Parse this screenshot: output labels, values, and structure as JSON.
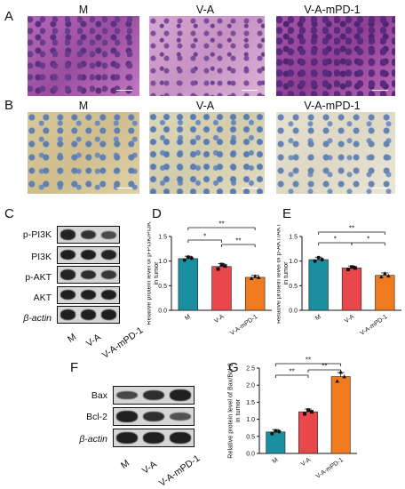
{
  "panels": {
    "A": {
      "letter": "A",
      "titles": [
        "M",
        "V-A",
        "V-A-mPD-1"
      ]
    },
    "B": {
      "letter": "B",
      "titles": [
        "M",
        "V-A",
        "V-A-mPD-1"
      ]
    },
    "C": {
      "letter": "C",
      "proteins": [
        "p-PI3K",
        "PI3K",
        "p-AKT",
        "AKT",
        "β-actin"
      ],
      "lanes": [
        "M",
        "V-A",
        "V-A-mPD-1"
      ]
    },
    "D": {
      "letter": "D"
    },
    "E": {
      "letter": "E"
    },
    "F": {
      "letter": "F",
      "proteins": [
        "Bax",
        "Bcl-2",
        "β-actin"
      ],
      "lanes": [
        "M",
        "V-A",
        "V-A-mPD-1"
      ]
    },
    "G": {
      "letter": "G"
    }
  },
  "colors": {
    "M": "#1a8fa0",
    "V-A": "#e8474c",
    "V-A-mPD-1": "#f07b1f"
  },
  "chart_data": [
    {
      "type": "bar",
      "panel": "D",
      "categories": [
        "M",
        "V-A",
        "V-A-mPD-1"
      ],
      "values": [
        1.05,
        0.89,
        0.67
      ],
      "errors": [
        0.05,
        0.06,
        0.04
      ],
      "points": [
        [
          1.02,
          1.08,
          1.06
        ],
        [
          0.84,
          0.93,
          0.9
        ],
        [
          0.65,
          0.69,
          0.67
        ]
      ],
      "ylabel": "Relative protein level of p-PI3K/PI3K in tumor",
      "ylim": [
        0,
        1.5
      ],
      "yticks": [
        "0.0",
        "0.5",
        "1.0",
        "1.5"
      ],
      "significance": [
        {
          "from": 0,
          "to": 1,
          "label": "*"
        },
        {
          "from": 0,
          "to": 2,
          "label": "**"
        },
        {
          "from": 1,
          "to": 2,
          "label": "**"
        }
      ]
    },
    {
      "type": "bar",
      "panel": "E",
      "categories": [
        "M",
        "V-A",
        "V-A-mPD-1"
      ],
      "values": [
        1.03,
        0.86,
        0.71
      ],
      "errors": [
        0.05,
        0.04,
        0.05
      ],
      "points": [
        [
          1.0,
          1.07,
          1.03
        ],
        [
          0.83,
          0.88,
          0.86
        ],
        [
          0.68,
          0.75,
          0.7
        ]
      ],
      "ylabel": "Relative protein level of p-AKT/AKT in tumor",
      "ylim": [
        0,
        1.5
      ],
      "yticks": [
        "0.0",
        "0.5",
        "1.0",
        "1.5"
      ],
      "significance": [
        {
          "from": 0,
          "to": 1,
          "label": "*"
        },
        {
          "from": 0,
          "to": 2,
          "label": "**"
        },
        {
          "from": 1,
          "to": 2,
          "label": "*"
        }
      ]
    },
    {
      "type": "bar",
      "panel": "G",
      "categories": [
        "M",
        "V-A",
        "V-A-mPD-1"
      ],
      "values": [
        0.63,
        1.22,
        2.25
      ],
      "errors": [
        0.07,
        0.08,
        0.12
      ],
      "points": [
        [
          0.58,
          0.66,
          0.64
        ],
        [
          1.16,
          1.27,
          1.22
        ],
        [
          2.12,
          2.38,
          2.25
        ]
      ],
      "ylabel": "Relative protein level of Bax/Bcl-2 in tumor",
      "ylim": [
        0,
        2.5
      ],
      "yticks": [
        "0.0",
        "0.5",
        "1.0",
        "1.5",
        "2.0",
        "2.5"
      ],
      "significance": [
        {
          "from": 0,
          "to": 1,
          "label": "**"
        },
        {
          "from": 0,
          "to": 2,
          "label": "**"
        },
        {
          "from": 1,
          "to": 2,
          "label": "**"
        }
      ]
    }
  ]
}
